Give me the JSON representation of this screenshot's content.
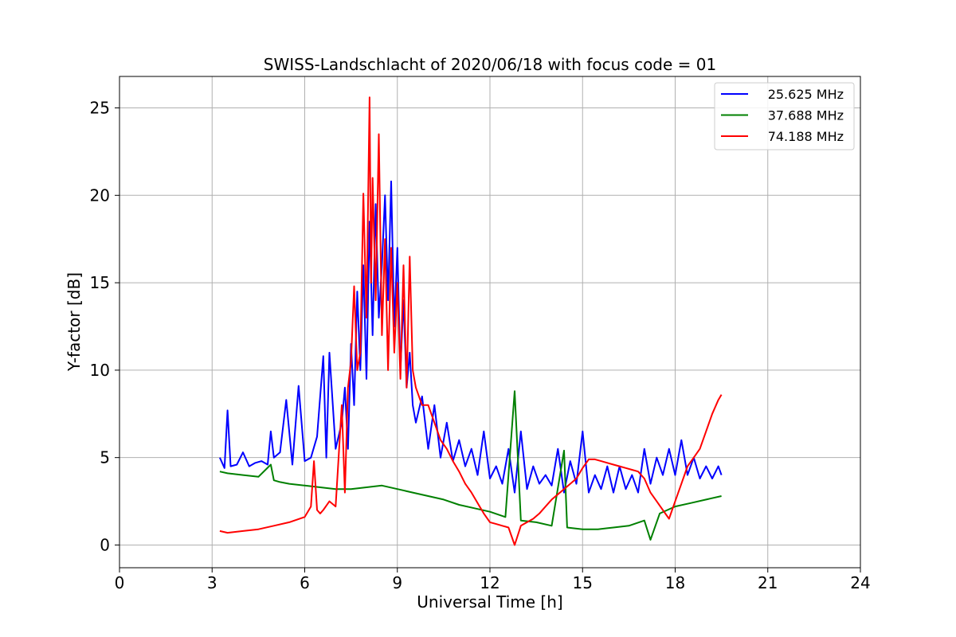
{
  "chart_data": {
    "type": "line",
    "title": "SWISS-Landschlacht of 2020/06/18 with focus code = 01",
    "xlabel": "Universal Time [h]",
    "ylabel": "Y-factor [dB]",
    "xlim": [
      0,
      24
    ],
    "ylim": [
      -1.3,
      26.8
    ],
    "xticks": [
      0,
      3,
      6,
      9,
      12,
      15,
      18,
      21,
      24
    ],
    "yticks": [
      0,
      5,
      10,
      15,
      20,
      25
    ],
    "grid": true,
    "legend_position": "top-right",
    "series": [
      {
        "name": "25.625 MHz",
        "color": "#0000ff",
        "x": [
          3.25,
          3.4,
          3.5,
          3.6,
          3.8,
          4.0,
          4.2,
          4.4,
          4.6,
          4.8,
          4.9,
          5.0,
          5.2,
          5.4,
          5.6,
          5.8,
          6.0,
          6.2,
          6.4,
          6.6,
          6.7,
          6.8,
          7.0,
          7.2,
          7.3,
          7.4,
          7.5,
          7.6,
          7.7,
          7.8,
          7.9,
          8.0,
          8.1,
          8.2,
          8.3,
          8.4,
          8.5,
          8.6,
          8.7,
          8.8,
          8.9,
          9.0,
          9.1,
          9.2,
          9.3,
          9.4,
          9.5,
          9.6,
          9.8,
          10.0,
          10.2,
          10.4,
          10.6,
          10.8,
          11.0,
          11.2,
          11.4,
          11.6,
          11.8,
          12.0,
          12.2,
          12.4,
          12.6,
          12.8,
          13.0,
          13.2,
          13.4,
          13.6,
          13.8,
          14.0,
          14.2,
          14.4,
          14.6,
          14.8,
          15.0,
          15.2,
          15.4,
          15.6,
          15.8,
          16.0,
          16.2,
          16.4,
          16.6,
          16.8,
          17.0,
          17.2,
          17.4,
          17.6,
          17.8,
          18.0,
          18.2,
          18.4,
          18.6,
          18.8,
          19.0,
          19.2,
          19.4,
          19.5
        ],
        "values": [
          5.0,
          4.4,
          7.7,
          4.5,
          4.6,
          5.3,
          4.5,
          4.7,
          4.8,
          4.6,
          6.5,
          5.0,
          5.3,
          8.3,
          4.6,
          9.1,
          4.8,
          5.0,
          6.2,
          10.8,
          5.0,
          11.0,
          5.5,
          7.0,
          9.0,
          5.5,
          11.5,
          8.0,
          14.5,
          10.0,
          16.0,
          9.5,
          18.5,
          12.0,
          19.5,
          13.0,
          16.0,
          20.0,
          14.0,
          20.8,
          12.5,
          17.0,
          10.0,
          14.0,
          9.0,
          11.0,
          8.0,
          7.0,
          8.5,
          5.5,
          8.0,
          5.0,
          7.0,
          4.8,
          6.0,
          4.5,
          5.5,
          4.0,
          6.5,
          3.8,
          4.5,
          3.5,
          5.5,
          3.0,
          6.5,
          3.2,
          4.5,
          3.5,
          4.0,
          3.4,
          5.5,
          3.0,
          4.8,
          3.5,
          6.5,
          3.0,
          4.0,
          3.2,
          4.5,
          3.0,
          4.5,
          3.2,
          4.0,
          3.0,
          5.5,
          3.5,
          5.0,
          4.0,
          5.5,
          4.0,
          6.0,
          4.0,
          5.0,
          3.8,
          4.5,
          3.8,
          4.5,
          4.0
        ]
      },
      {
        "name": "37.688 MHz",
        "color": "#008000",
        "x": [
          3.25,
          3.5,
          4.0,
          4.5,
          4.9,
          5.0,
          5.2,
          5.5,
          6.0,
          6.5,
          7.0,
          7.5,
          8.0,
          8.5,
          9.0,
          9.5,
          10.0,
          10.5,
          11.0,
          11.5,
          12.0,
          12.5,
          12.8,
          13.0,
          13.5,
          14.0,
          14.4,
          14.5,
          15.0,
          15.5,
          16.0,
          16.5,
          17.0,
          17.2,
          17.5,
          18.0,
          18.5,
          19.0,
          19.5
        ],
        "values": [
          4.2,
          4.1,
          4.0,
          3.9,
          4.6,
          3.7,
          3.6,
          3.5,
          3.4,
          3.3,
          3.2,
          3.2,
          3.3,
          3.4,
          3.2,
          3.0,
          2.8,
          2.6,
          2.3,
          2.1,
          1.9,
          1.6,
          8.8,
          1.4,
          1.3,
          1.1,
          5.4,
          1.0,
          0.9,
          0.9,
          1.0,
          1.1,
          1.4,
          0.3,
          1.8,
          2.2,
          2.4,
          2.6,
          2.8
        ]
      },
      {
        "name": "74.188 MHz",
        "color": "#ff0000",
        "x": [
          3.25,
          3.5,
          4.0,
          4.5,
          5.0,
          5.5,
          6.0,
          6.2,
          6.3,
          6.4,
          6.5,
          6.6,
          6.8,
          7.0,
          7.2,
          7.3,
          7.4,
          7.5,
          7.6,
          7.7,
          7.8,
          7.9,
          8.0,
          8.1,
          8.15,
          8.2,
          8.3,
          8.4,
          8.5,
          8.6,
          8.7,
          8.8,
          8.9,
          9.0,
          9.1,
          9.2,
          9.3,
          9.4,
          9.5,
          9.6,
          9.7,
          9.8,
          10.0,
          10.2,
          10.4,
          10.6,
          10.8,
          11.0,
          11.2,
          11.4,
          11.6,
          11.8,
          12.0,
          12.2,
          12.4,
          12.6,
          12.8,
          13.0,
          13.2,
          13.4,
          13.6,
          13.8,
          14.0,
          14.2,
          14.4,
          14.6,
          14.8,
          15.0,
          15.2,
          15.4,
          15.6,
          15.8,
          16.0,
          16.2,
          16.4,
          16.6,
          16.8,
          17.0,
          17.2,
          17.4,
          17.6,
          17.8,
          18.0,
          18.2,
          18.4,
          18.6,
          18.8,
          19.0,
          19.2,
          19.4,
          19.5
        ],
        "values": [
          0.8,
          0.7,
          0.8,
          0.9,
          1.1,
          1.3,
          1.6,
          2.2,
          4.8,
          2.0,
          1.8,
          2.0,
          2.5,
          2.2,
          8.0,
          3.0,
          9.0,
          10.5,
          14.8,
          10.0,
          11.0,
          20.1,
          13.0,
          25.6,
          15.0,
          21.0,
          14.0,
          23.5,
          12.0,
          17.5,
          10.0,
          17.0,
          11.0,
          15.0,
          9.5,
          16.0,
          9.0,
          16.5,
          10.0,
          9.0,
          8.5,
          8.0,
          8.0,
          7.0,
          6.0,
          5.5,
          4.8,
          4.2,
          3.5,
          3.0,
          2.4,
          1.8,
          1.3,
          1.2,
          1.1,
          1.0,
          0.0,
          1.1,
          1.3,
          1.5,
          1.8,
          2.2,
          2.6,
          2.9,
          3.2,
          3.5,
          3.8,
          4.4,
          4.9,
          4.9,
          4.8,
          4.7,
          4.6,
          4.5,
          4.4,
          4.3,
          4.2,
          3.8,
          3.0,
          2.5,
          2.0,
          1.5,
          2.5,
          3.5,
          4.5,
          5.0,
          5.5,
          6.5,
          7.5,
          8.3,
          8.6
        ]
      }
    ]
  }
}
